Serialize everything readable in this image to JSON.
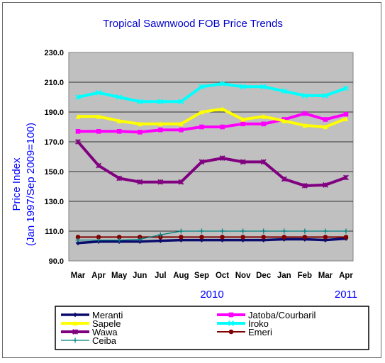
{
  "chart_data": {
    "type": "line",
    "title": "Tropical Sawnwood FOB Price Trends",
    "ylabel_line1": "Price Index",
    "ylabel_line2": "(Jan 1997/Sep 2009=100)",
    "xlabel": "",
    "ylim": [
      90.0,
      230.0
    ],
    "y_ticks": [
      "90.0",
      "110.0",
      "130.0",
      "150.0",
      "170.0",
      "190.0",
      "210.0",
      "230.0"
    ],
    "categories": [
      "Mar",
      "Apr",
      "May",
      "Jun",
      "Jul",
      "Aug",
      "Sep",
      "Oct",
      "Nov",
      "Dec",
      "Jan",
      "Feb",
      "Mar",
      "Apr"
    ],
    "year_labels": [
      {
        "text": "2010",
        "category_index": 6.5
      },
      {
        "text": "2011",
        "category_index": 13
      }
    ],
    "grid": true,
    "legend_position": "bottom",
    "series": [
      {
        "name": "Meranti",
        "color": "#0b0b6e",
        "marker": "diamond",
        "values": [
          102,
          103,
          103,
          103,
          103.5,
          104,
          104,
          104,
          104,
          104,
          104.5,
          104.5,
          104,
          105
        ]
      },
      {
        "name": "Jatoba/Courbaril",
        "color": "#ff00ff",
        "marker": "square",
        "values": [
          177,
          177,
          177,
          176.5,
          178,
          178,
          180,
          180,
          182,
          182,
          185,
          189,
          185,
          188.5
        ]
      },
      {
        "name": "Sapele",
        "color": "#ffff00",
        "marker": "triangle",
        "values": [
          187,
          187,
          184,
          182,
          182,
          182,
          190,
          192,
          185,
          187,
          184,
          181,
          180,
          185.5
        ]
      },
      {
        "name": "Iroko",
        "color": "#00ffff",
        "marker": "x",
        "values": [
          200,
          203,
          200,
          197,
          197,
          197,
          207,
          209,
          207,
          207,
          204,
          201,
          201,
          206
        ]
      },
      {
        "name": "Wawa",
        "color": "#800080",
        "marker": "star",
        "values": [
          170,
          154,
          145.5,
          143,
          143,
          143,
          156.5,
          159,
          156.5,
          156.5,
          145,
          140.5,
          141,
          146
        ]
      },
      {
        "name": "Emeri",
        "color": "#800000",
        "marker": "circle",
        "values": [
          106,
          106,
          106,
          106,
          106,
          106,
          106,
          106,
          106,
          106,
          106,
          106,
          106,
          106
        ]
      },
      {
        "name": "Ceiba",
        "color": "#008080",
        "marker": "plus",
        "values": [
          104,
          104,
          104,
          104.5,
          107.5,
          110,
          110,
          110,
          110,
          110,
          110,
          110,
          110,
          110
        ]
      }
    ]
  }
}
